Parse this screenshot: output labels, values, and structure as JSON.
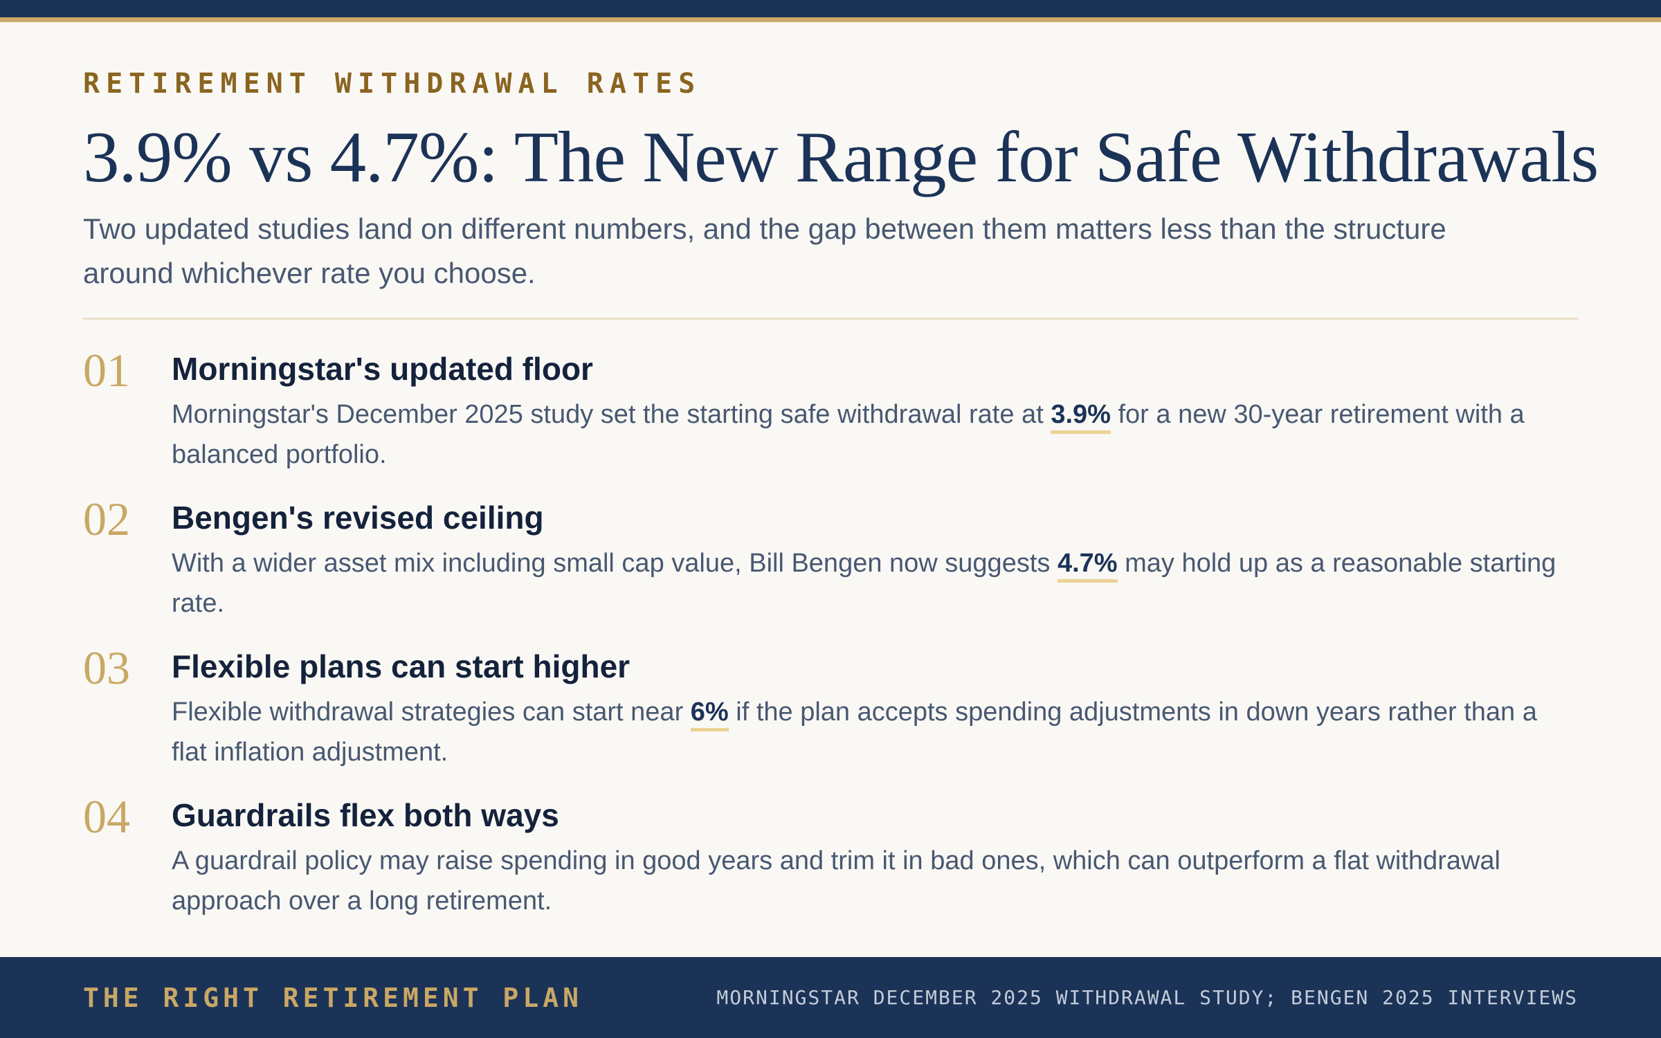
{
  "header": {
    "eyebrow": "RETIREMENT WITHDRAWAL RATES",
    "title": "3.9% vs 4.7%: The New Range for Safe Withdrawals",
    "subtitle": "Two updated studies land on different numbers, and the gap between them matters less than the structure around whichever rate you choose."
  },
  "points": [
    {
      "number": "01",
      "title": "Morningstar's updated floor",
      "text_before": "Morningstar's December 2025 study set the starting safe withdrawal rate at ",
      "highlight": "3.9%",
      "text_after": " for a new 30-year retirement with a balanced portfolio."
    },
    {
      "number": "02",
      "title": "Bengen's revised ceiling",
      "text_before": "With a wider asset mix including small cap value, Bill Bengen now suggests ",
      "highlight": "4.7%",
      "text_after": " may hold up as a reasonable starting rate."
    },
    {
      "number": "03",
      "title": "Flexible plans can start higher",
      "text_before": "Flexible withdrawal strategies can start near ",
      "highlight": "6%",
      "text_after": " if the plan accepts spending adjustments in down years rather than a flat inflation adjustment."
    },
    {
      "number": "04",
      "title": "Guardrails flex both ways",
      "text_before": "A guardrail policy may raise spending in good years and trim it in bad ones, which can outperform a flat withdrawal approach over a long retirement.",
      "highlight": "",
      "text_after": ""
    }
  ],
  "footer": {
    "brand": "THE RIGHT RETIREMENT PLAN",
    "source": "MORNINGSTAR DECEMBER 2025 WITHDRAWAL STUDY; BENGEN 2025 INTERVIEWS"
  },
  "colors": {
    "navy": "#1c3358",
    "gold": "#c9a764",
    "eyebrow_gold": "#8a6420",
    "background": "#faf8f4",
    "highlight_underline": "#ecd394"
  }
}
